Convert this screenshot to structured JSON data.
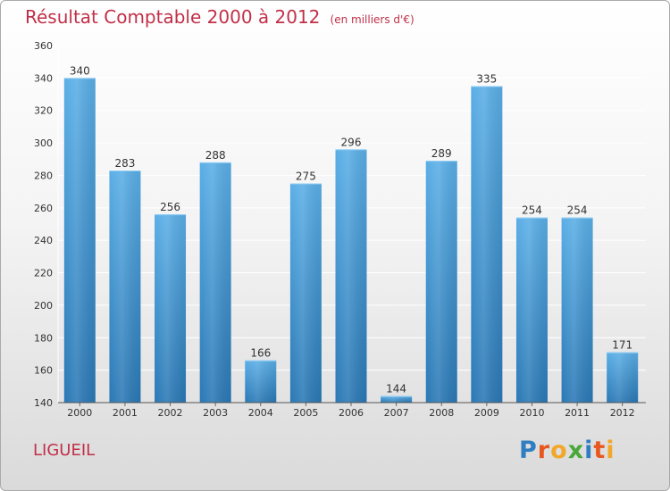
{
  "header": {
    "title": "Résultat Comptable 2000 à 2012",
    "unit": "(en milliers d'€)"
  },
  "footer": {
    "place": "LIGUEIL",
    "brand": "Proxiti"
  },
  "colors": {
    "title": "#c03048",
    "bar_top": "#5aaee6",
    "bar_bottom": "#2a78b5",
    "grid": "#ffffff",
    "axis_text": "#333333",
    "brand_letters": [
      "#2f7ec1",
      "#e8571e",
      "#f2a72a",
      "#4aa83a",
      "#2f7ec1",
      "#e8571e",
      "#f2a72a"
    ]
  },
  "chart_data": {
    "type": "bar",
    "title": "Résultat Comptable 2000 à 2012",
    "subtitle": "(en milliers d'€)",
    "xlabel": "",
    "ylabel": "",
    "categories": [
      "2000",
      "2001",
      "2002",
      "2003",
      "2004",
      "2005",
      "2006",
      "2007",
      "2008",
      "2009",
      "2010",
      "2011",
      "2012"
    ],
    "values": [
      340,
      283,
      256,
      288,
      166,
      275,
      296,
      144,
      289,
      335,
      254,
      254,
      171
    ],
    "ylim": [
      140,
      360
    ],
    "yticks": [
      140,
      160,
      180,
      200,
      220,
      240,
      260,
      280,
      300,
      320,
      340,
      360
    ],
    "grid": true,
    "legend": "none"
  }
}
